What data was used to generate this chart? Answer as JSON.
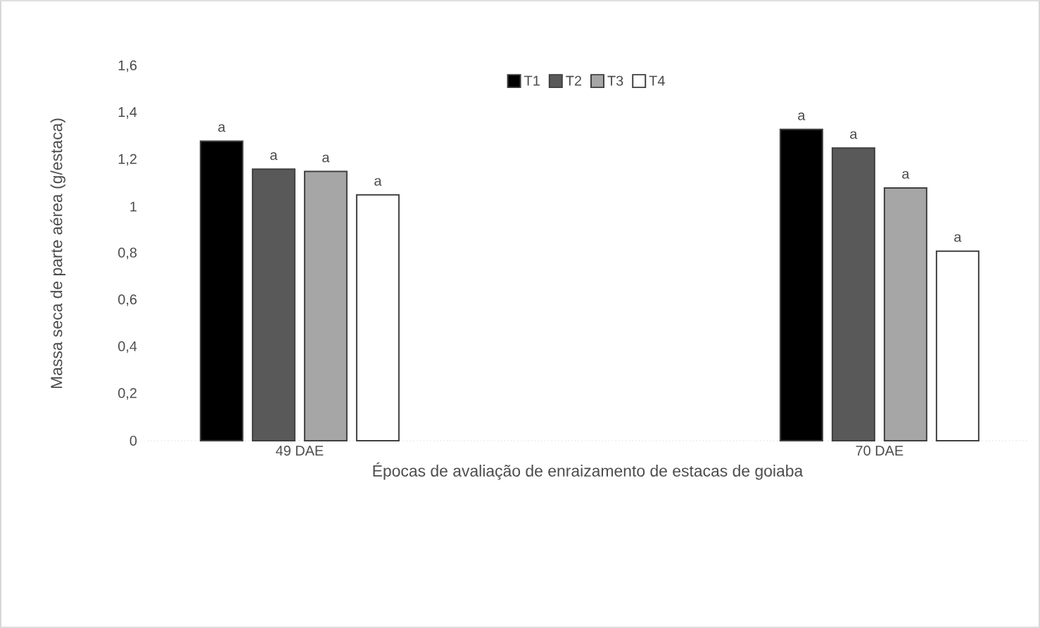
{
  "chart_data": {
    "type": "bar",
    "xlabel": "Épocas de avaliação de enraizamento de estacas de goiaba",
    "ylabel": "Massa seca de parte aérea (g/estaca)",
    "categories": [
      "49 DAE",
      "70 DAE"
    ],
    "series": [
      {
        "name": "T1",
        "color": "#000000",
        "values": [
          1.28,
          1.33
        ]
      },
      {
        "name": "T2",
        "color": "#595959",
        "values": [
          1.16,
          1.25
        ]
      },
      {
        "name": "T3",
        "color": "#a6a6a6",
        "values": [
          1.15,
          1.08
        ]
      },
      {
        "name": "T4",
        "color": "#ffffff",
        "values": [
          1.05,
          0.81
        ]
      }
    ],
    "ylim": [
      0,
      1.6
    ],
    "yticks": [
      0,
      {
        "value": 0.2,
        "label": "0,2"
      },
      {
        "value": 0.4,
        "label": "0,4"
      },
      {
        "value": 0.6,
        "label": "0,6"
      },
      {
        "value": 0.8,
        "label": "0,8"
      },
      1,
      {
        "value": 1.2,
        "label": "1,2"
      },
      {
        "value": 1.4,
        "label": "1,4"
      },
      {
        "value": 1.6,
        "label": "1,6"
      }
    ],
    "legend": "top",
    "annotations": [
      "a",
      "a",
      "a",
      "a",
      "a",
      "a",
      "a",
      "a"
    ]
  }
}
